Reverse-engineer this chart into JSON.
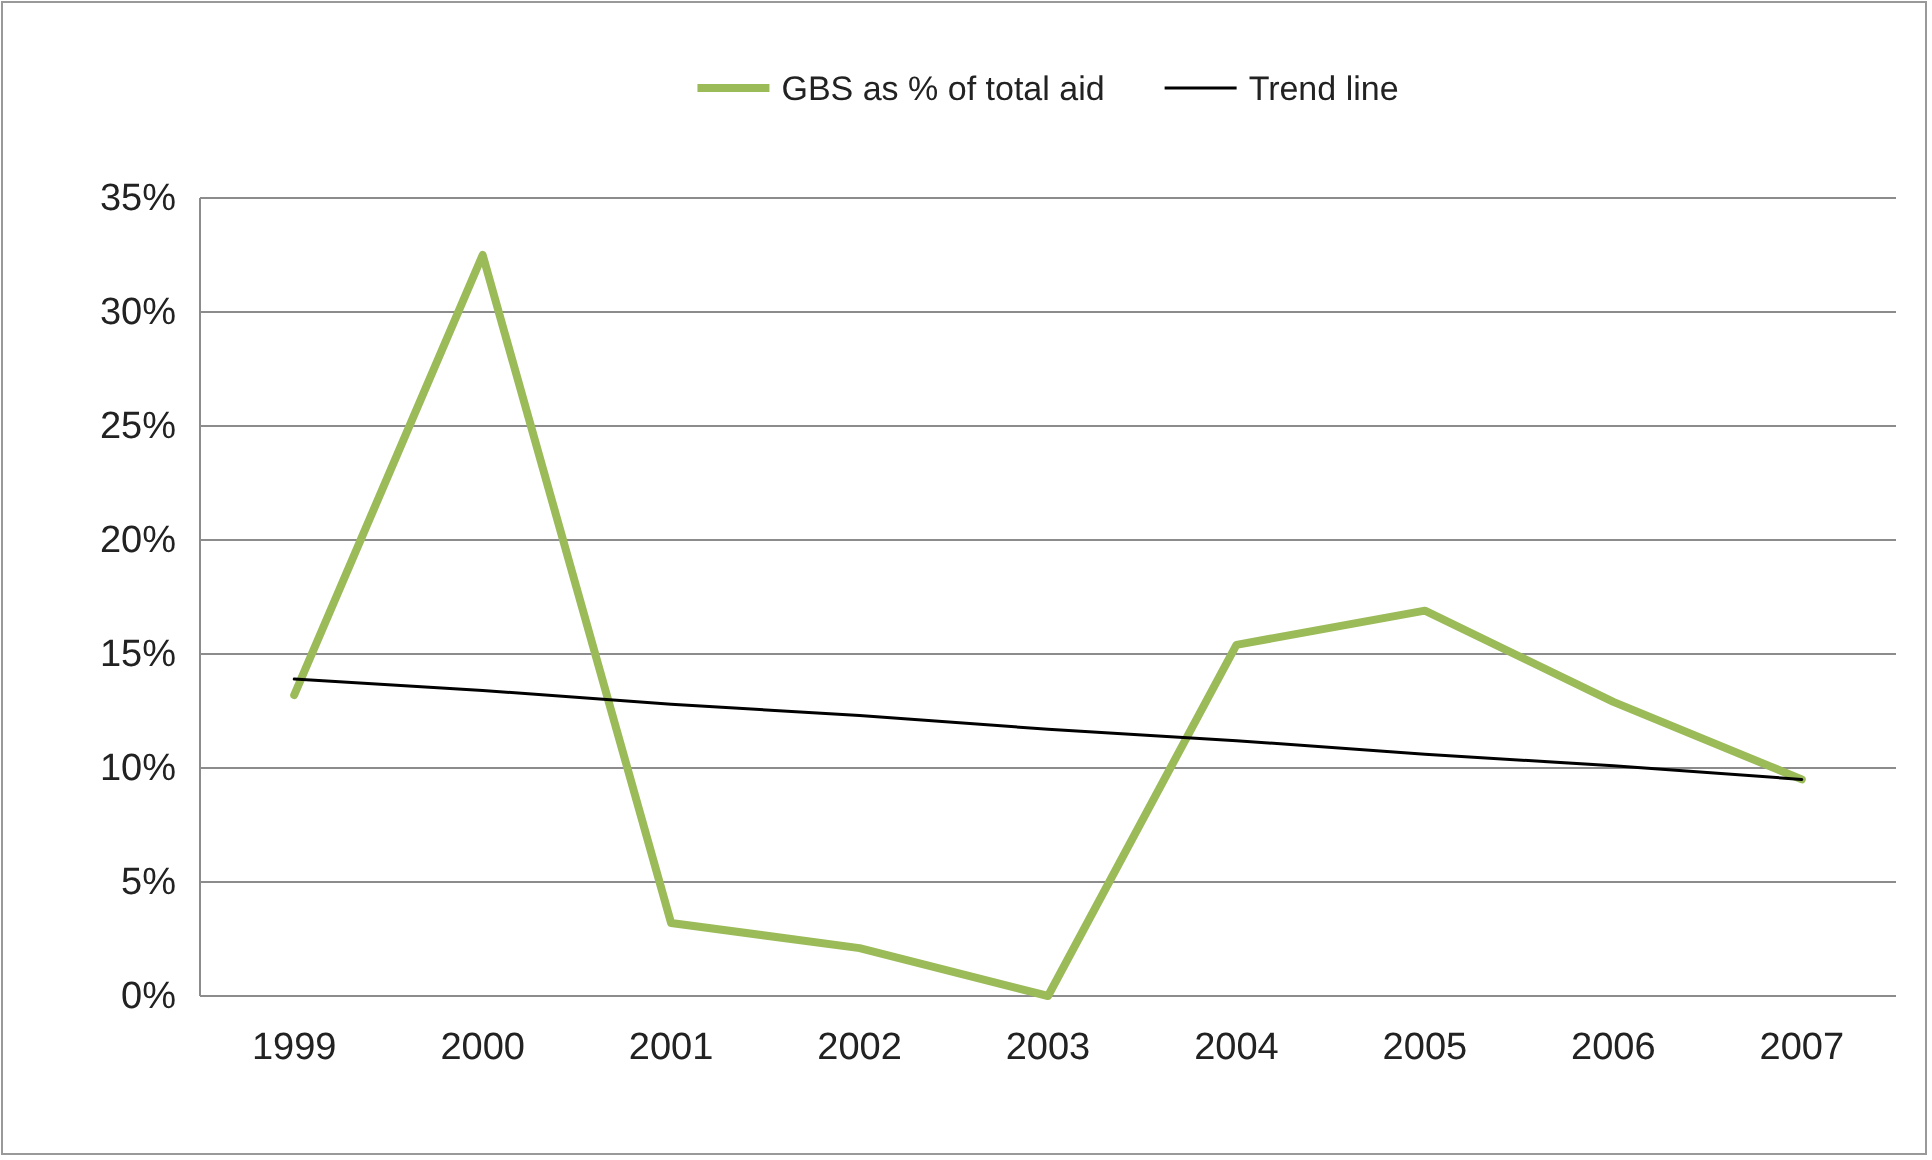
{
  "chart_data": {
    "type": "line",
    "categories": [
      "1999",
      "2000",
      "2001",
      "2002",
      "2003",
      "2004",
      "2005",
      "2006",
      "2007"
    ],
    "series": [
      {
        "name": "GBS as % of total aid",
        "color": "#9bbb59",
        "values": [
          13.2,
          32.5,
          3.2,
          2.1,
          0,
          15.4,
          16.9,
          12.9,
          9.5
        ]
      },
      {
        "name": "Trend line",
        "type": "line",
        "color": "#000000",
        "values": [
          13.9,
          13.4,
          12.8,
          12.3,
          11.7,
          11.2,
          10.6,
          10.1,
          9.5
        ]
      }
    ],
    "ylim": [
      0,
      35
    ],
    "yticks": [
      {
        "value": 0,
        "label": "0%"
      },
      {
        "value": 5,
        "label": "5%"
      },
      {
        "value": 10,
        "label": "10%"
      },
      {
        "value": 15,
        "label": "15%"
      },
      {
        "value": 20,
        "label": "20%"
      },
      {
        "value": 25,
        "label": "25%"
      },
      {
        "value": 30,
        "label": "30%"
      },
      {
        "value": 35,
        "label": "35%"
      }
    ],
    "grid": "y",
    "legend": "top",
    "marker": "none",
    "line_style": "solid"
  }
}
